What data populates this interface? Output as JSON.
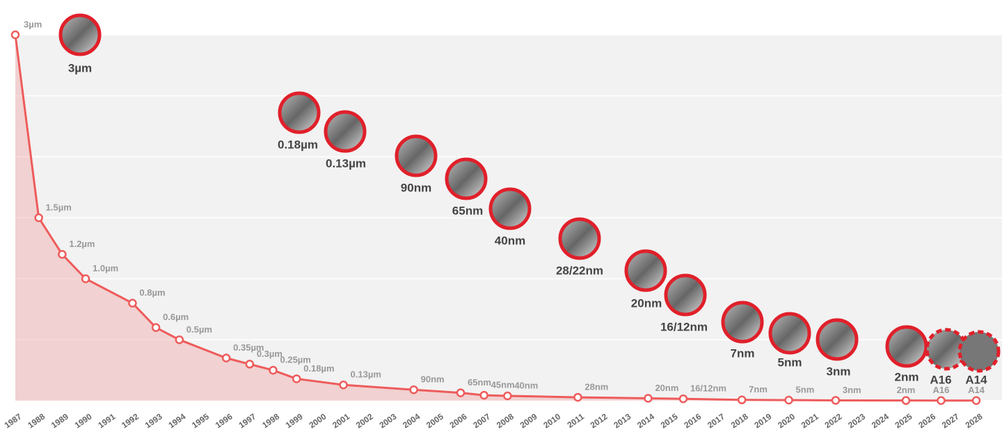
{
  "chart_data": {
    "type": "line",
    "x": [
      1987,
      1988,
      1989,
      1990,
      1992,
      1993,
      1994,
      1996,
      1997,
      1998,
      1999,
      2001,
      2004,
      2006,
      2007,
      2008,
      2011,
      2014,
      2015.5,
      2018,
      2020,
      2022,
      2025,
      2026.5,
      2028
    ],
    "values": [
      3,
      1.5,
      1.2,
      1.0,
      0.8,
      0.6,
      0.5,
      0.35,
      0.3,
      0.25,
      0.18,
      0.13,
      0.09,
      0.065,
      0.045,
      0.04,
      0.028,
      0.02,
      0.016,
      0.007,
      0.005,
      0.003,
      0.002,
      0.0016,
      0.0014
    ],
    "value_labels": [
      "3µm",
      "1.5µm",
      "1.2µm",
      "1.0µm",
      "0.8µm",
      "0.6µm",
      "0.5µm",
      "0.35µm",
      "0.3µm",
      "0.25µm",
      "0.18µm",
      "0.13µm",
      "90nm",
      "65nm",
      "45nm",
      "40nm",
      "28nm",
      "20nm",
      "16/12nm",
      "7nm",
      "5nm",
      "3nm",
      "2nm",
      "A16",
      "A14"
    ],
    "color": "#ee5b5b",
    "xlim": [
      1987,
      2028
    ],
    "xticks": [
      1987,
      1988,
      1989,
      1990,
      1991,
      1992,
      1993,
      1994,
      1995,
      1996,
      1997,
      1998,
      1999,
      2000,
      2001,
      2002,
      2003,
      2004,
      2005,
      2006,
      2007,
      2008,
      2009,
      2010,
      2011,
      2012,
      2013,
      2014,
      2015,
      2016,
      2017,
      2018,
      2019,
      2020,
      2021,
      2022,
      2023,
      2024,
      2025,
      2026,
      2027,
      2028
    ],
    "ylim": [
      0,
      3
    ],
    "yticks": [
      0,
      0.5,
      1,
      1.5,
      2,
      2.5,
      3
    ],
    "grid": true,
    "annotations": [
      "3µm",
      "0.18µm",
      "0.13µm",
      "90nm",
      "65nm",
      "40nm",
      "28/22nm",
      "20nm",
      "16/12nm",
      "7nm",
      "5nm",
      "3nm",
      "2nm",
      "A16",
      "A14"
    ]
  }
}
